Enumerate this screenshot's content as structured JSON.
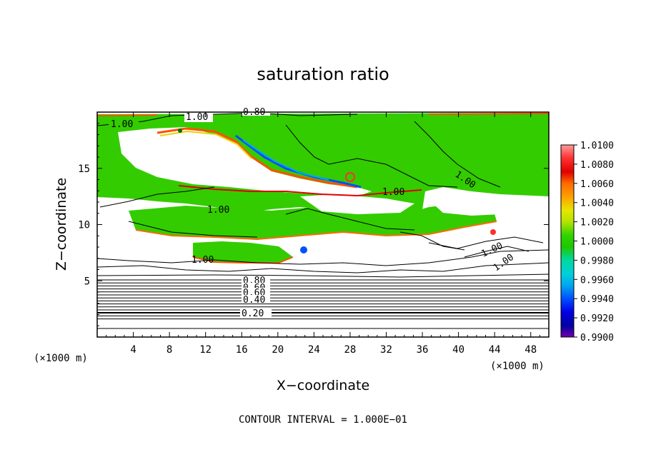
{
  "chart_data": {
    "type": "heatmap",
    "title": "saturation ratio",
    "xlabel": "X−coordinate",
    "ylabel": "Z−coordinate",
    "x_unit_label": "(×1000 m)",
    "z_unit_label": "(×1000 m)",
    "xlim": [
      0,
      50
    ],
    "ylim": [
      0,
      20
    ],
    "x_ticks": [
      "4",
      "8",
      "12",
      "16",
      "20",
      "24",
      "28",
      "32",
      "36",
      "40",
      "44",
      "48"
    ],
    "x_tick_values": [
      4,
      8,
      12,
      16,
      20,
      24,
      28,
      32,
      36,
      40,
      44,
      48
    ],
    "y_ticks": [
      "5",
      "10",
      "15"
    ],
    "y_tick_values": [
      5,
      10,
      15
    ],
    "colorbar": {
      "labels": [
        "1.0100",
        "1.0080",
        "1.0060",
        "1.0040",
        "1.0020",
        "1.0000",
        "0.9980",
        "0.9960",
        "0.9940",
        "0.9920",
        "0.9900"
      ],
      "range": [
        0.99,
        1.01
      ],
      "colors": [
        "#ff9a9a",
        "#ff3030",
        "#e00000",
        "#ff6a00",
        "#ffa000",
        "#e6e600",
        "#b4e400",
        "#1ec800",
        "#30d400",
        "#00d9a0",
        "#00d0d8",
        "#00a8f0",
        "#0050ff",
        "#0000e6",
        "#0000a0",
        "#7000b0"
      ]
    },
    "contour_labels": [
      "1.00",
      "1.00",
      "0.80",
      "1.00",
      "1.00",
      "1.00",
      "1.00",
      "1.00",
      "1.00",
      "0.80",
      "0.60",
      "0.60",
      "0.40",
      "0.20"
    ],
    "contour_interval_label": "CONTOUR INTERVAL = 1.000E−01"
  }
}
